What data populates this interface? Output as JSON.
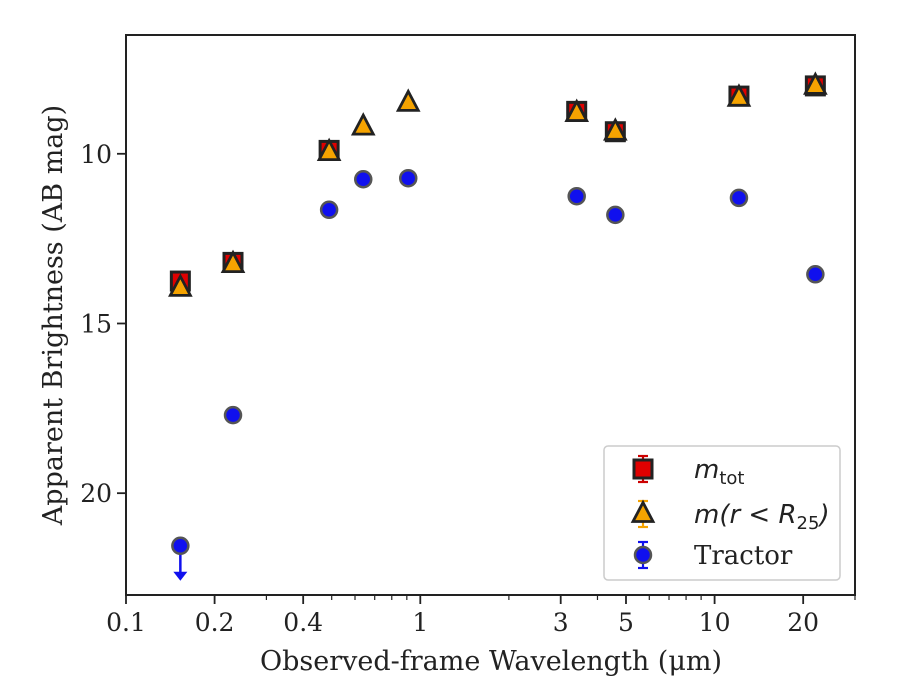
{
  "chart_data": {
    "type": "scatter",
    "title": "",
    "xlabel": "Observed-frame Wavelength (μm)",
    "ylabel": "Apparent Brightness (AB mag)",
    "xscale": "log",
    "xlim": [
      0.1,
      30
    ],
    "ylim": [
      23.0,
      6.5
    ],
    "y_inverted": true,
    "grid": false,
    "legend_position": "lower-right",
    "xticks": [
      {
        "value": 0.1,
        "label": "0.1"
      },
      {
        "value": 0.2,
        "label": "0.2"
      },
      {
        "value": 0.4,
        "label": "0.4"
      },
      {
        "value": 1,
        "label": "1"
      },
      {
        "value": 3,
        "label": "3"
      },
      {
        "value": 5,
        "label": "5"
      },
      {
        "value": 10,
        "label": "10"
      },
      {
        "value": 20,
        "label": "20"
      }
    ],
    "yticks": [
      {
        "value": 10,
        "label": "10"
      },
      {
        "value": 15,
        "label": "15"
      },
      {
        "value": 20,
        "label": "20"
      }
    ],
    "series": [
      {
        "name": "m_tot",
        "legend_main": "m",
        "legend_sub": "tot",
        "marker": "square",
        "color": "#e00000",
        "edge_color": "#222222",
        "errbar_color": "#cc0000",
        "x": [
          0.153,
          0.231,
          0.49,
          3.4,
          4.6,
          12.1,
          22.0
        ],
        "y": [
          13.75,
          13.2,
          9.9,
          8.75,
          9.35,
          8.3,
          8.0
        ]
      },
      {
        "name": "m(r < R25)",
        "legend_main": "m(r < R",
        "legend_sub": "25",
        "legend_tail": ")",
        "marker": "triangle",
        "color": "#f5a300",
        "edge_color": "#222222",
        "errbar_color": "#f5a300",
        "x": [
          0.153,
          0.231,
          0.49,
          0.64,
          0.91,
          3.4,
          4.6,
          12.1,
          22.0
        ],
        "y": [
          13.95,
          13.25,
          9.95,
          9.2,
          8.5,
          8.8,
          9.35,
          8.35,
          8.0
        ]
      },
      {
        "name": "Tractor",
        "legend_main": "Tractor",
        "marker": "circle",
        "color": "#1010ee",
        "edge_color": "#555555",
        "errbar_color": "#1010ee",
        "x": [
          0.231,
          0.49,
          0.64,
          0.91,
          3.4,
          4.6,
          12.1,
          22.0
        ],
        "y": [
          17.7,
          11.65,
          10.75,
          10.72,
          11.25,
          11.8,
          11.3,
          13.55
        ]
      }
    ],
    "upper_limits": [
      {
        "series": "Tractor",
        "x": 0.153,
        "y": 21.55,
        "color": "#1010ee"
      }
    ]
  }
}
